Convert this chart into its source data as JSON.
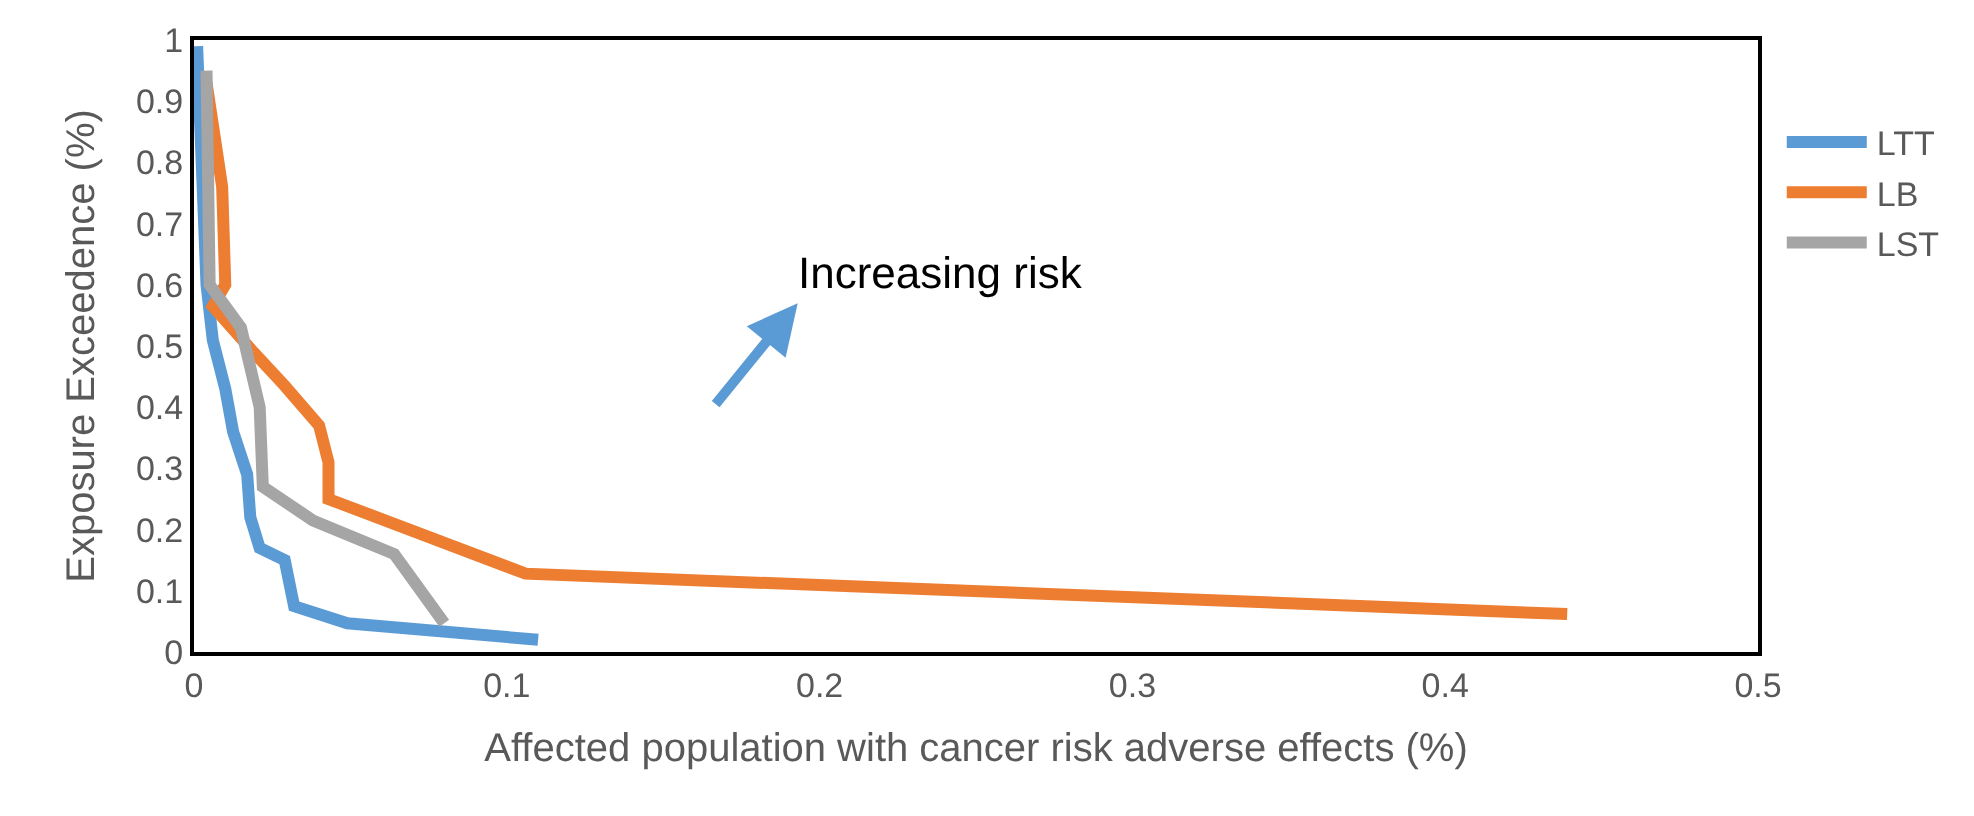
{
  "chart_data": {
    "type": "line",
    "xlabel": "Affected population with cancer risk adverse effects (%)",
    "ylabel": "Exposure Exceedence (%)",
    "xlim": [
      0,
      0.5
    ],
    "xticks": [
      0,
      0.1,
      0.2,
      0.3,
      0.4,
      0.5
    ],
    "ylim": [
      0,
      1
    ],
    "yticks": [
      0,
      0.1,
      0.2,
      0.3,
      0.4,
      0.5,
      0.6,
      0.7,
      0.8,
      0.9,
      1
    ],
    "legend": "right",
    "marker": "none",
    "line_style": "solid",
    "annotations": [
      "Increasing risk"
    ],
    "series": [
      {
        "name": "LTT",
        "color": "#5b9bd5",
        "x": [
          0.001,
          0.004,
          0.006,
          0.01,
          0.0125,
          0.017,
          0.018,
          0.021,
          0.029,
          0.032,
          0.049,
          0.11
        ],
        "values": [
          0.99,
          0.6,
          0.51,
          0.43,
          0.36,
          0.29,
          0.22,
          0.17,
          0.15,
          0.075,
          0.047,
          0.02
        ]
      },
      {
        "name": "LB",
        "color": "#ed7d31",
        "x": [
          0.004,
          0.009,
          0.01,
          0.006,
          0.019,
          0.029,
          0.04,
          0.043,
          0.043,
          0.106,
          0.439
        ],
        "values": [
          0.93,
          0.76,
          0.6,
          0.565,
          0.49,
          0.435,
          0.37,
          0.31,
          0.25,
          0.128,
          0.062
        ]
      },
      {
        "name": "LST",
        "color": "#a5a5a5",
        "x": [
          0.004,
          0.005,
          0.015,
          0.021,
          0.022,
          0.038,
          0.064,
          0.08
        ],
        "values": [
          0.95,
          0.6,
          0.53,
          0.4,
          0.27,
          0.215,
          0.16,
          0.047
        ]
      }
    ]
  }
}
